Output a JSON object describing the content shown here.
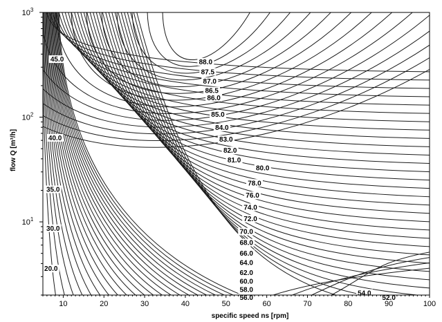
{
  "chart_data": {
    "type": "line",
    "subtype": "contour",
    "title": "",
    "xlabel": "specific speed ns [rpm]",
    "ylabel": "flow Q [m³/h]",
    "xlim": [
      5,
      100
    ],
    "ylim": [
      2,
      1000
    ],
    "yscale": "log",
    "x_ticks": [
      10,
      20,
      30,
      40,
      50,
      60,
      70,
      80,
      90,
      100
    ],
    "y_ticks": [
      {
        "value": 10,
        "base": "10",
        "exp": "1"
      },
      {
        "value": 100,
        "base": "10",
        "exp": "2"
      },
      {
        "value": 1000,
        "base": "10",
        "exp": "3"
      }
    ],
    "grid": false,
    "contours": [
      {
        "label": "88.0",
        "label_x": 45.0,
        "label_y": 330
      },
      {
        "label": "87.5",
        "label_x": 45.5,
        "label_y": 265
      },
      {
        "label": "87.0",
        "label_x": 46.0,
        "label_y": 215
      },
      {
        "label": "86.5",
        "label_x": 46.5,
        "label_y": 175
      },
      {
        "label": "86.0",
        "label_x": 47.0,
        "label_y": 150
      },
      {
        "label": "85.0",
        "label_x": 48.0,
        "label_y": 104
      },
      {
        "label": "84.0",
        "label_x": 49.0,
        "label_y": 78
      },
      {
        "label": "83.0",
        "label_x": 50.0,
        "label_y": 60
      },
      {
        "label": "82.0",
        "label_x": 51.0,
        "label_y": 47
      },
      {
        "label": "81.0",
        "label_x": 52.0,
        "label_y": 38
      },
      {
        "label": "80.0",
        "label_x": 59.0,
        "label_y": 32
      },
      {
        "label": "78.0",
        "label_x": 57.0,
        "label_y": 23
      },
      {
        "label": "76.0",
        "label_x": 56.5,
        "label_y": 17.5
      },
      {
        "label": "74.0",
        "label_x": 56.0,
        "label_y": 13.5
      },
      {
        "label": "72.0",
        "label_x": 56.0,
        "label_y": 10.5
      },
      {
        "label": "70.0",
        "label_x": 55.0,
        "label_y": 7.9
      },
      {
        "label": "68.0",
        "label_x": 55.0,
        "label_y": 6.2
      },
      {
        "label": "66.0",
        "label_x": 55.0,
        "label_y": 4.9
      },
      {
        "label": "64.0",
        "label_x": 55.0,
        "label_y": 4.0
      },
      {
        "label": "62.0",
        "label_x": 55.0,
        "label_y": 3.2
      },
      {
        "label": "60.0",
        "label_x": 55.0,
        "label_y": 2.65
      },
      {
        "label": "58.0",
        "label_x": 55.0,
        "label_y": 2.2
      },
      {
        "label": "56.0",
        "label_x": 55.0,
        "label_y": 1.85
      },
      {
        "label": "54.0",
        "label_x": 84.0,
        "label_y": 2.05
      },
      {
        "label": "52.0",
        "label_x": 90.0,
        "label_y": 1.85
      },
      {
        "label": "45.0",
        "label_x": 8.5,
        "label_y": 350
      },
      {
        "label": "40.0",
        "label_x": 8.0,
        "label_y": 62
      },
      {
        "label": "35.0",
        "label_x": 7.5,
        "label_y": 20
      },
      {
        "label": "30.0",
        "label_x": 7.5,
        "label_y": 8.5
      },
      {
        "label": "20.0",
        "label_x": 7.0,
        "label_y": 3.5
      }
    ]
  }
}
